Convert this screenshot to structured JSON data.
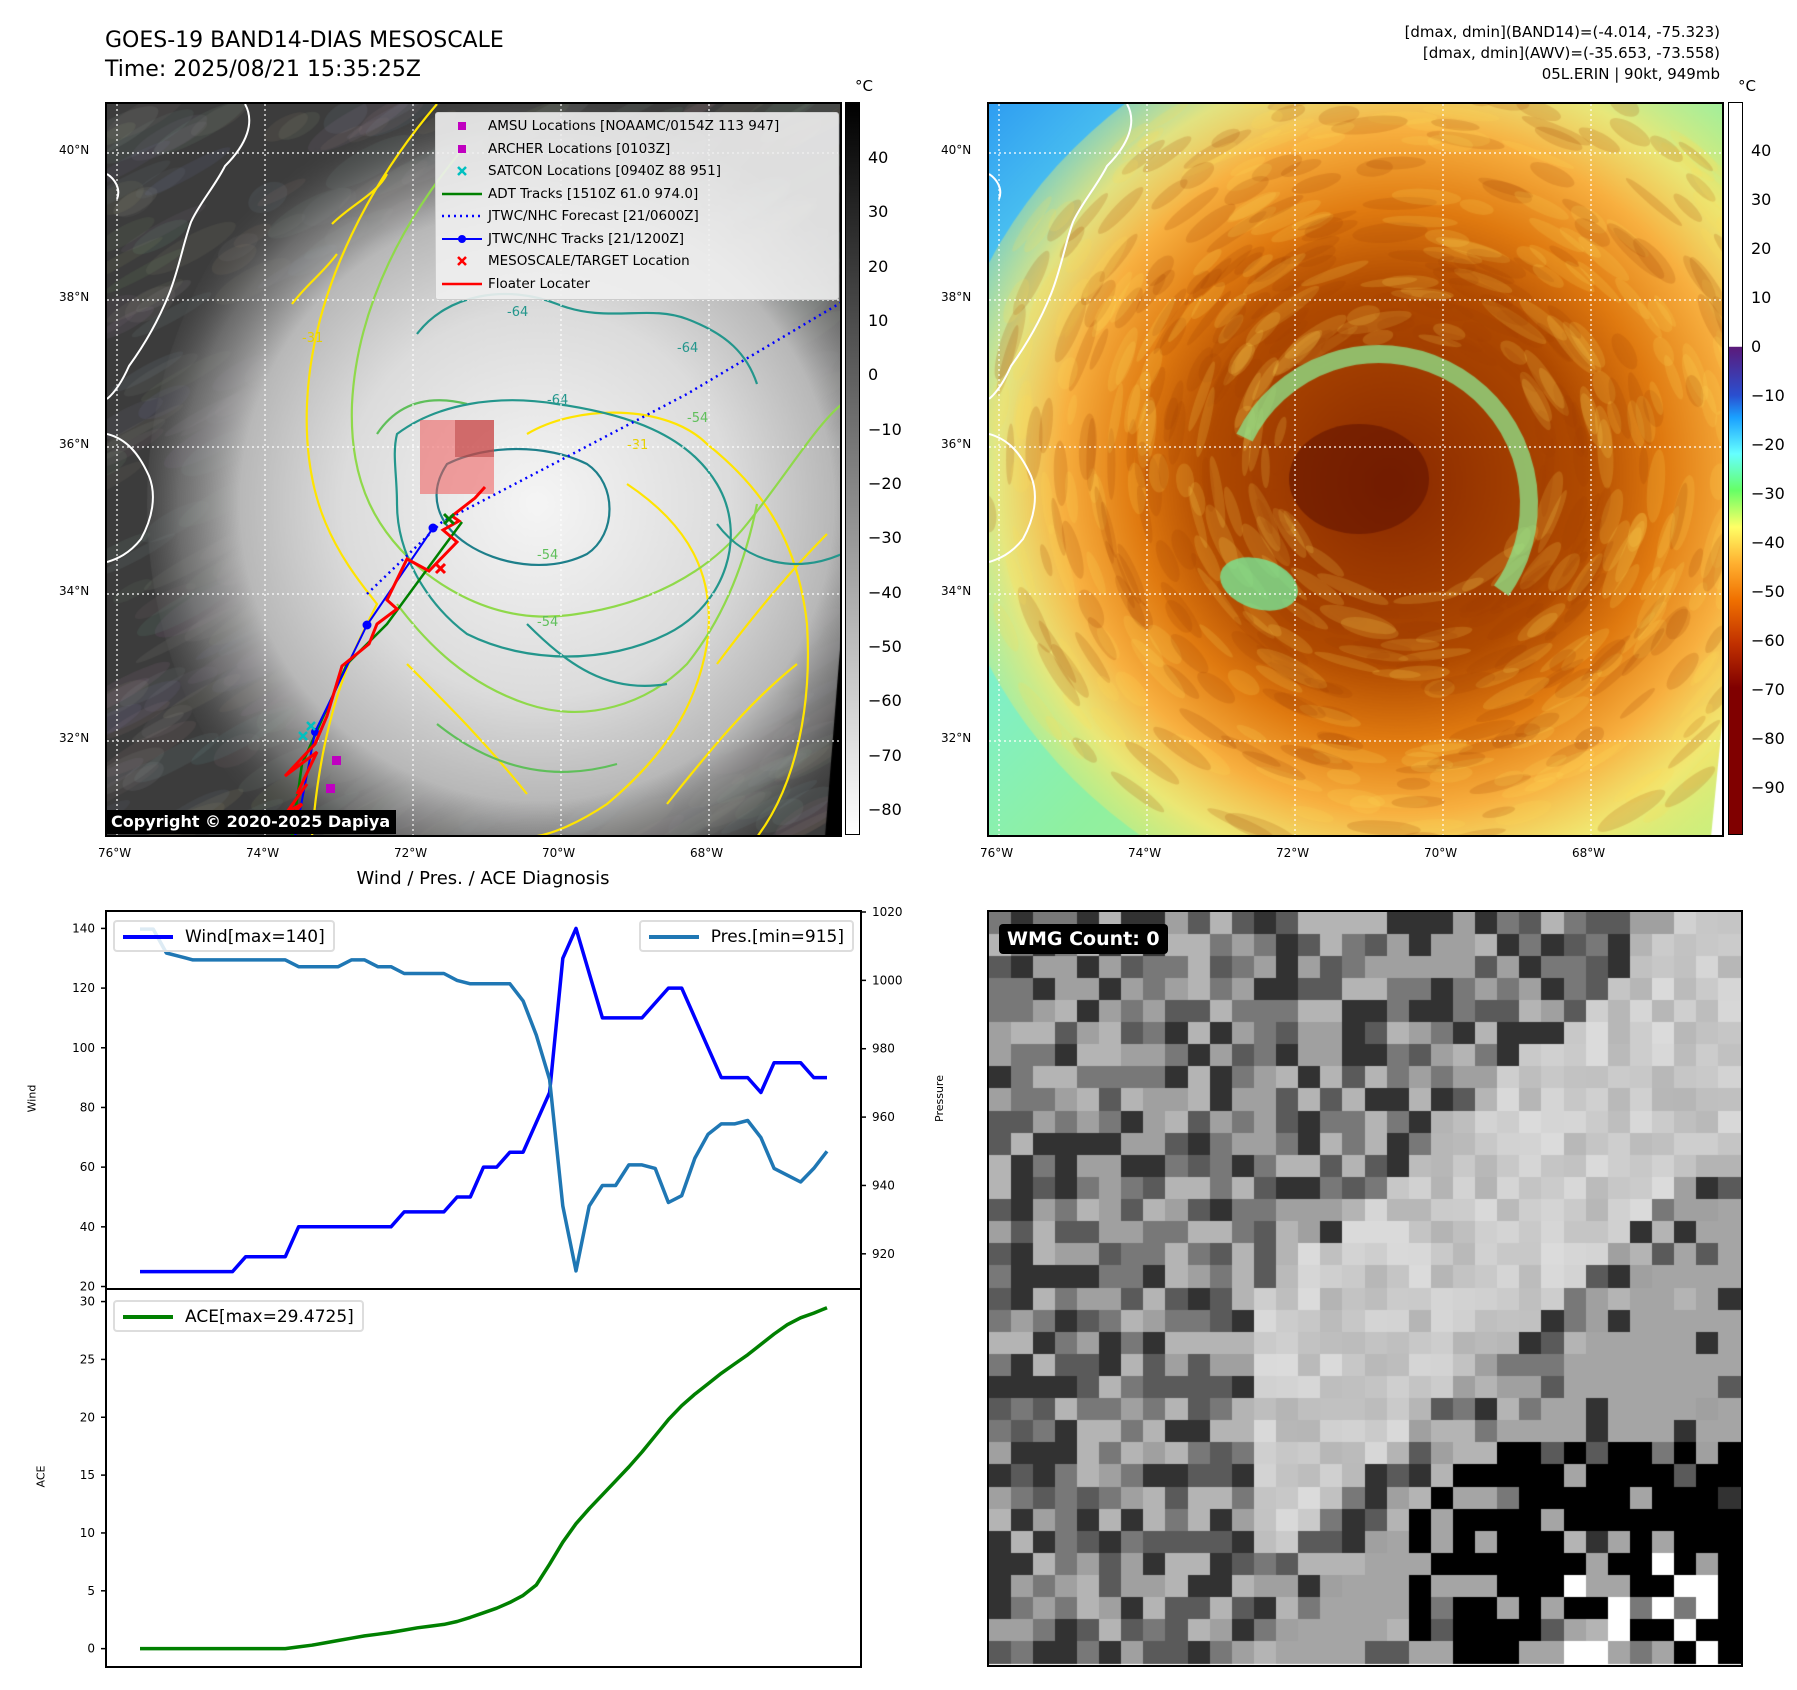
{
  "header": {
    "title_line1": "GOES-19 BAND14-DIAS MESOSCALE",
    "title_line2": "Time: 2025/08/21 15:35:25Z",
    "stats_line1": "[dmax, dmin](BAND14)=(-4.014, -75.323)",
    "stats_line2": "[dmax, dmin](AWV)=(-35.653, -73.558)",
    "stats_line3": "05L.ERIN | 90kt, 949mb"
  },
  "maps": {
    "lat_labels": [
      "40°N",
      "38°N",
      "36°N",
      "34°N",
      "32°N"
    ],
    "lon_labels": [
      "76°W",
      "74°W",
      "72°W",
      "70°W",
      "68°W"
    ],
    "copyright": "Copyright © 2020-2025 Dapiya",
    "contour_labels": [
      "-64",
      "-64",
      "-64",
      "-54",
      "-54",
      "-54",
      "-31",
      "-31"
    ]
  },
  "legend": [
    {
      "label": "AMSU Locations [NOAAMC/0154Z 113 947]",
      "symbol": "square",
      "color": "#c000c0"
    },
    {
      "label": "ARCHER Locations [0103Z]",
      "symbol": "square",
      "color": "#c000c0"
    },
    {
      "label": "SATCON Locations [0940Z 88 951]",
      "symbol": "x",
      "color": "#00c0c0"
    },
    {
      "label": "ADT Tracks [1510Z 61.0 974.0]",
      "symbol": "line",
      "color": "#008000"
    },
    {
      "label": "JTWC/NHC Forecast [21/0600Z]",
      "symbol": "dotted",
      "color": "#0000ff"
    },
    {
      "label": "JTWC/NHC Tracks [21/1200Z]",
      "symbol": "line-dot",
      "color": "#0000ff"
    },
    {
      "label": "MESOSCALE/TARGET Location",
      "symbol": "x",
      "color": "#ff0000"
    },
    {
      "label": "Floater Locater",
      "symbol": "line",
      "color": "#ff0000"
    }
  ],
  "colorbar_left": {
    "unit": "°C",
    "ticks": [
      "40",
      "30",
      "20",
      "10",
      "0",
      "−10",
      "−20",
      "−30",
      "−40",
      "−50",
      "−60",
      "−70",
      "−80"
    ],
    "tick_values": [
      40,
      30,
      20,
      10,
      0,
      -10,
      -20,
      -30,
      -40,
      -50,
      -60,
      -70,
      -80
    ],
    "range": [
      -84.6,
      50.3
    ]
  },
  "colorbar_right": {
    "unit": "°C",
    "ticks": [
      "40",
      "30",
      "20",
      "10",
      "0",
      "−10",
      "−20",
      "−30",
      "−40",
      "−50",
      "−60",
      "−70",
      "−80",
      "−90"
    ],
    "tick_values": [
      40,
      30,
      20,
      10,
      0,
      -10,
      -20,
      -30,
      -40,
      -50,
      -60,
      -70,
      -80,
      -90
    ],
    "range": [
      -99.6,
      50
    ]
  },
  "wmg": {
    "label": "WMG Count: 0"
  },
  "chart_data": [
    {
      "type": "line",
      "title": "Wind / Pres. / ACE Diagnosis",
      "xlim": [
        -2.5,
        54.5
      ],
      "ylabel": "Wind",
      "ylim": [
        19.5,
        145.5
      ],
      "yticks": [
        20,
        40,
        60,
        80,
        100,
        120,
        140
      ],
      "y2label": "Pressure",
      "y2lim": [
        910,
        1020
      ],
      "y2ticks": [
        920,
        940,
        960,
        980,
        1000,
        1020
      ],
      "series": [
        {
          "name": "Wind[max=140]",
          "axis": "left",
          "color": "#0000ff",
          "legend": "top-left",
          "values": [
            25,
            25,
            25,
            25,
            25,
            25,
            25,
            25,
            30,
            30,
            30,
            30,
            40,
            40,
            40,
            40,
            40,
            40,
            40,
            40,
            45,
            45,
            45,
            45,
            50,
            50,
            60,
            60,
            65,
            65,
            75,
            85,
            130,
            140,
            125,
            110,
            110,
            110,
            110,
            115,
            120,
            120,
            110,
            100,
            90,
            90,
            90,
            85,
            95,
            95,
            95,
            90,
            90
          ]
        },
        {
          "name": "Pres.[min=915]",
          "axis": "right",
          "color": "#1f77b4",
          "legend": "top-right",
          "values": [
            1015,
            1015,
            1008,
            1007,
            1006,
            1006,
            1006,
            1006,
            1006,
            1006,
            1006,
            1006,
            1004,
            1004,
            1004,
            1004,
            1006,
            1006,
            1004,
            1004,
            1002,
            1002,
            1002,
            1002,
            1000,
            999,
            999,
            999,
            999,
            994,
            984,
            971,
            934,
            915,
            934,
            940,
            940,
            946,
            946,
            945,
            935,
            937,
            948,
            955,
            958,
            958,
            959,
            954,
            945,
            943,
            941,
            945,
            950
          ]
        }
      ]
    },
    {
      "type": "line",
      "xlim": [
        -2.5,
        54.5
      ],
      "ylabel": "ACE",
      "ylim": [
        -1.5,
        31
      ],
      "yticks": [
        0,
        5,
        10,
        15,
        20,
        25,
        30
      ],
      "series": [
        {
          "name": "ACE[max=29.4725]",
          "color": "#008000",
          "legend": "top-left",
          "values": [
            0,
            0,
            0,
            0,
            0,
            0,
            0,
            0,
            0,
            0,
            0,
            0,
            0.15,
            0.3,
            0.5,
            0.7,
            0.9,
            1.1,
            1.25,
            1.4,
            1.6,
            1.8,
            1.95,
            2.1,
            2.35,
            2.7,
            3.1,
            3.5,
            4.0,
            4.6,
            5.5,
            7.3,
            9.2,
            10.8,
            12.1,
            13.3,
            14.5,
            15.7,
            17.0,
            18.4,
            19.8,
            21.0,
            22.0,
            22.9,
            23.8,
            24.6,
            25.4,
            26.3,
            27.2,
            28.0,
            28.6,
            29.0,
            29.4725
          ]
        }
      ]
    }
  ]
}
